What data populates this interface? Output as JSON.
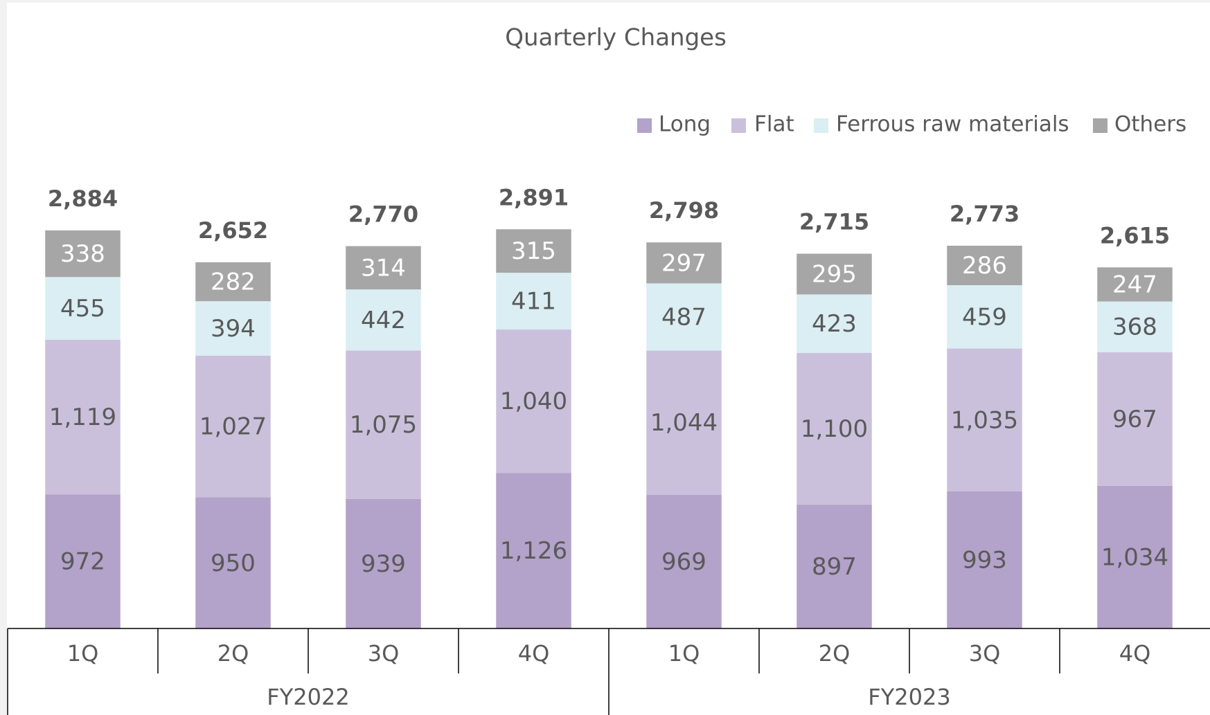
{
  "chart_data": {
    "type": "stacked_bar",
    "title": "Quarterly Changes",
    "categories": [
      "1Q",
      "2Q",
      "3Q",
      "4Q",
      "1Q",
      "2Q",
      "3Q",
      "4Q"
    ],
    "category_groups": [
      "FY2022",
      "FY2023"
    ],
    "series": [
      {
        "name": "Long",
        "color": "#b3a2c9",
        "label_color": "#595959",
        "values": [
          972,
          950,
          939,
          1126,
          969,
          897,
          993,
          1034
        ],
        "value_labels": [
          "972",
          "950",
          "939",
          "1,126",
          "969",
          "897",
          "993",
          "1,034"
        ]
      },
      {
        "name": "Flat",
        "color": "#cbc0dc",
        "label_color": "#595959",
        "values": [
          1119,
          1027,
          1075,
          1040,
          1044,
          1100,
          1035,
          967
        ],
        "value_labels": [
          "1,119",
          "1,027",
          "1,075",
          "1,040",
          "1,044",
          "1,100",
          "1,035",
          "967"
        ]
      },
      {
        "name": "Ferrous raw materials",
        "color": "#daeef3",
        "label_color": "#595959",
        "values": [
          455,
          394,
          442,
          411,
          487,
          423,
          459,
          368
        ],
        "value_labels": [
          "455",
          "394",
          "442",
          "411",
          "487",
          "423",
          "459",
          "368"
        ]
      },
      {
        "name": "Others",
        "color": "#a6a6a6",
        "label_color": "#ffffff",
        "values": [
          338,
          282,
          314,
          315,
          297,
          295,
          286,
          247
        ],
        "value_labels": [
          "338",
          "282",
          "314",
          "315",
          "297",
          "295",
          "286",
          "247"
        ]
      }
    ],
    "totals": {
      "values": [
        2884,
        2652,
        2770,
        2891,
        2798,
        2715,
        2773,
        2615
      ],
      "value_labels": [
        "2,884",
        "2,652",
        "2,770",
        "2,891",
        "2,798",
        "2,715",
        "2,773",
        "2,615"
      ]
    },
    "ylim": [
      0,
      3500
    ],
    "legend": "top-right"
  }
}
